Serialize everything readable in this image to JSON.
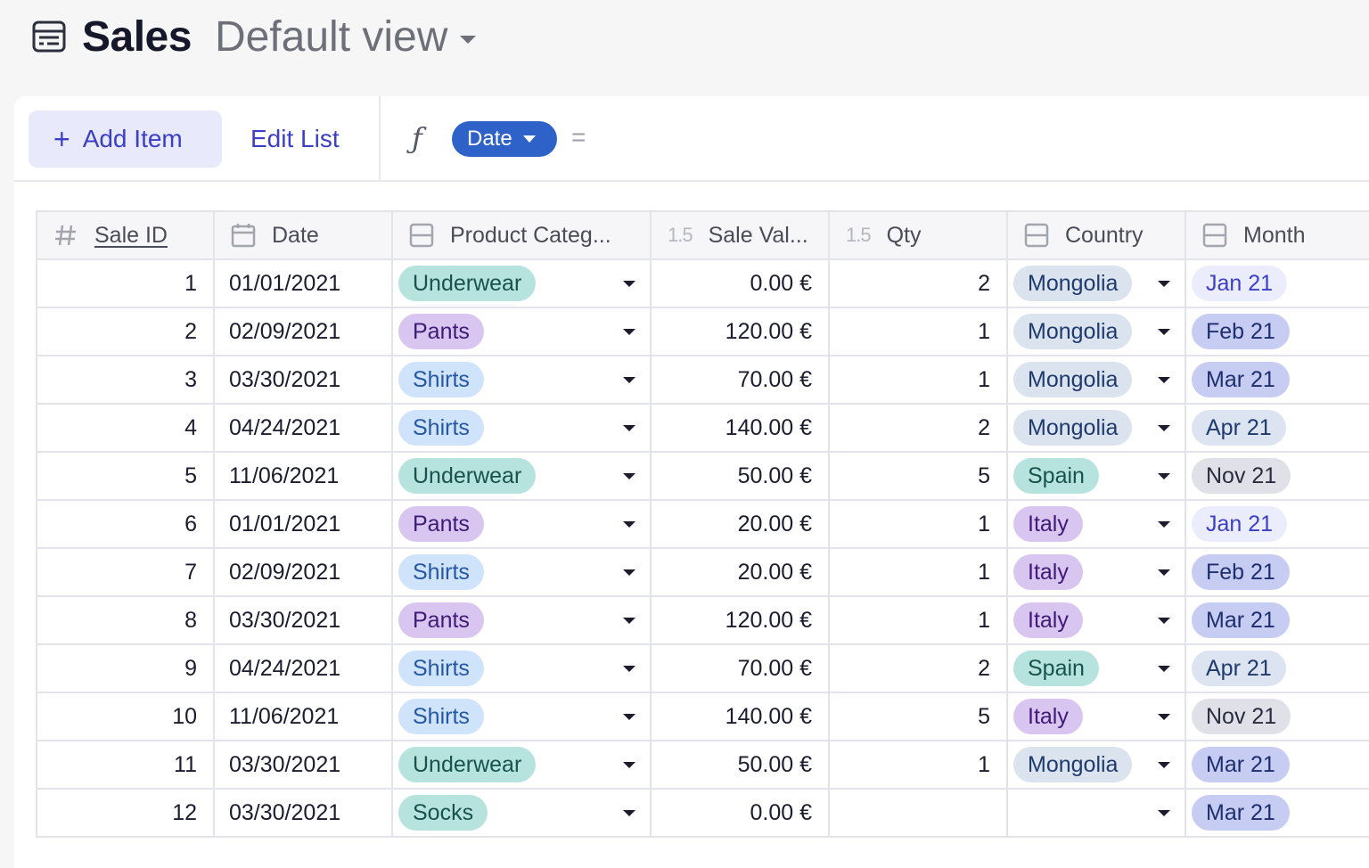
{
  "header": {
    "title": "Sales",
    "view_name": "Default view"
  },
  "toolbar": {
    "add_label": "Add Item",
    "edit_label": "Edit List",
    "fx_symbol": "ƒ",
    "date_chip": "Date",
    "equals": "="
  },
  "columns": [
    {
      "label": "Sale ID",
      "icon": "hash-icon"
    },
    {
      "label": "Date",
      "icon": "calendar-icon"
    },
    {
      "label": "Product Categ...",
      "icon": "select-icon"
    },
    {
      "label": "Sale Val...",
      "icon": "number-icon",
      "icon_text": "1.5"
    },
    {
      "label": "Qty",
      "icon": "number-icon",
      "icon_text": "1.5"
    },
    {
      "label": "Country",
      "icon": "select-icon"
    },
    {
      "label": "Month",
      "icon": "select-icon"
    }
  ],
  "colors": {
    "Underwear": {
      "bg": "#b7e3df",
      "fg": "#17524c"
    },
    "Pants": {
      "bg": "#d8c6f0",
      "fg": "#3f1a78"
    },
    "Shirts": {
      "bg": "#cfe3fa",
      "fg": "#2458a6"
    },
    "Socks": {
      "bg": "#b7e3df",
      "fg": "#17524c"
    },
    "Mongolia": {
      "bg": "#dbe3ef",
      "fg": "#1e3a6e"
    },
    "Spain": {
      "bg": "#b7e3df",
      "fg": "#17524c"
    },
    "Italy": {
      "bg": "#d8c6f0",
      "fg": "#3f1a78"
    },
    "Jan 21": {
      "bg": "#ecedfc",
      "fg": "#3b3fc6"
    },
    "Feb 21": {
      "bg": "#c7cdf2",
      "fg": "#1e2e6e"
    },
    "Mar 21": {
      "bg": "#c7cdf2",
      "fg": "#1e2e6e"
    },
    "Apr 21": {
      "bg": "#dde4f1",
      "fg": "#1e3a6e"
    },
    "Nov 21": {
      "bg": "#dfe0e8",
      "fg": "#2a2d3e"
    }
  },
  "rows": [
    {
      "id": "1",
      "date": "01/01/2021",
      "category": "Underwear",
      "value": "0.00 €",
      "qty": "2",
      "country": "Mongolia",
      "month": "Jan 21"
    },
    {
      "id": "2",
      "date": "02/09/2021",
      "category": "Pants",
      "value": "120.00 €",
      "qty": "1",
      "country": "Mongolia",
      "month": "Feb 21"
    },
    {
      "id": "3",
      "date": "03/30/2021",
      "category": "Shirts",
      "value": "70.00 €",
      "qty": "1",
      "country": "Mongolia",
      "month": "Mar 21"
    },
    {
      "id": "4",
      "date": "04/24/2021",
      "category": "Shirts",
      "value": "140.00 €",
      "qty": "2",
      "country": "Mongolia",
      "month": "Apr 21"
    },
    {
      "id": "5",
      "date": "11/06/2021",
      "category": "Underwear",
      "value": "50.00 €",
      "qty": "5",
      "country": "Spain",
      "month": "Nov 21"
    },
    {
      "id": "6",
      "date": "01/01/2021",
      "category": "Pants",
      "value": "20.00 €",
      "qty": "1",
      "country": "Italy",
      "month": "Jan 21"
    },
    {
      "id": "7",
      "date": "02/09/2021",
      "category": "Shirts",
      "value": "20.00 €",
      "qty": "1",
      "country": "Italy",
      "month": "Feb 21"
    },
    {
      "id": "8",
      "date": "03/30/2021",
      "category": "Pants",
      "value": "120.00 €",
      "qty": "1",
      "country": "Italy",
      "month": "Mar 21"
    },
    {
      "id": "9",
      "date": "04/24/2021",
      "category": "Shirts",
      "value": "70.00 €",
      "qty": "2",
      "country": "Spain",
      "month": "Apr 21"
    },
    {
      "id": "10",
      "date": "11/06/2021",
      "category": "Shirts",
      "value": "140.00 €",
      "qty": "5",
      "country": "Italy",
      "month": "Nov 21"
    },
    {
      "id": "11",
      "date": "03/30/2021",
      "category": "Underwear",
      "value": "50.00 €",
      "qty": "1",
      "country": "Mongolia",
      "month": "Mar 21"
    },
    {
      "id": "12",
      "date": "03/30/2021",
      "category": "Socks",
      "value": "0.00 €",
      "qty": "",
      "country": "",
      "month": "Mar 21"
    }
  ]
}
